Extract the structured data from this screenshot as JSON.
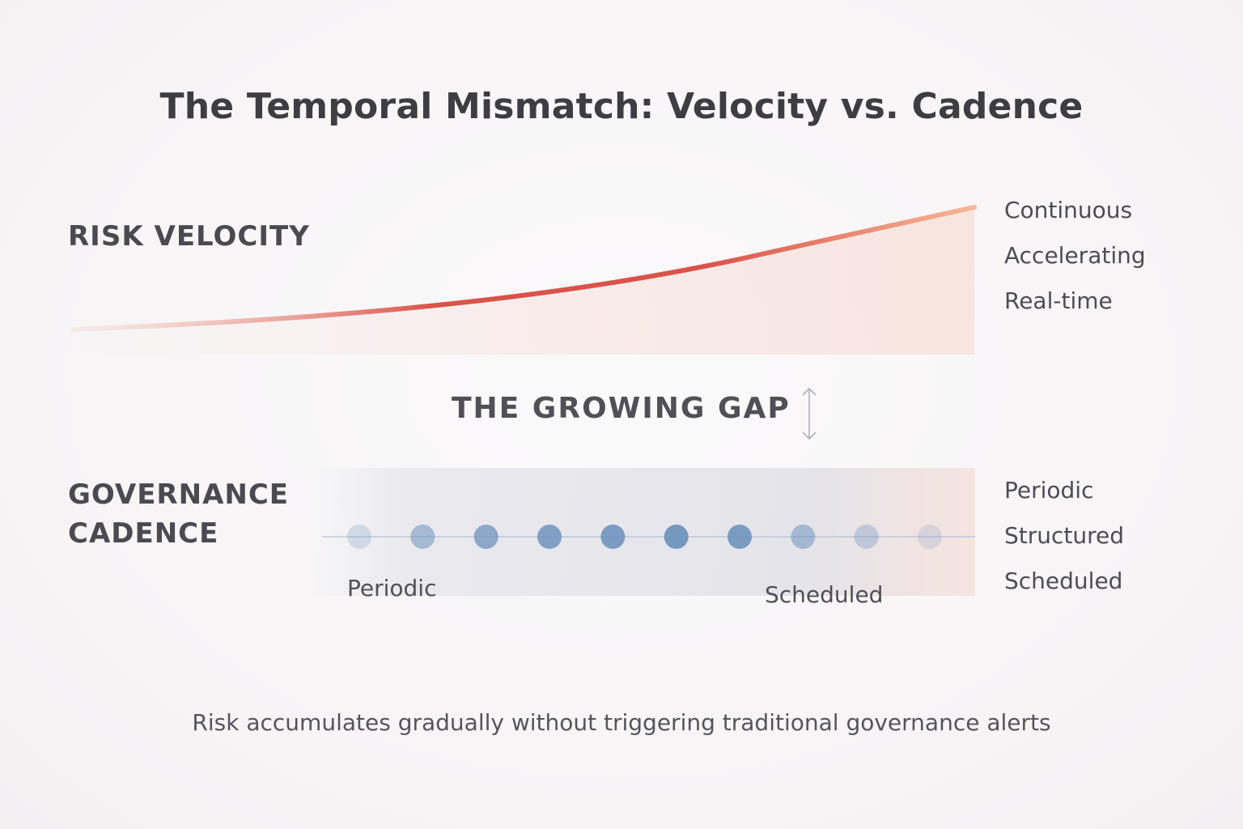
{
  "title": "The Temporal Mismatch: Velocity vs. Cadence",
  "velocity": {
    "label": "RISK VELOCITY",
    "traits": [
      "Continuous",
      "Accelerating",
      "Real-time"
    ],
    "curve_color_start": "#f4c0b0",
    "curve_color_mid": "#d9534a",
    "curve_color_end": "#f7b896"
  },
  "gap": {
    "label": "THE GROWING GAP",
    "arrow_icon": "double-arrow-vertical-icon"
  },
  "cadence": {
    "label_line1": "GOVERNANCE",
    "label_line2": "CADENCE",
    "traits": [
      "Periodic",
      "Structured",
      "Scheduled"
    ],
    "dot_caption_left": "Periodic",
    "dot_caption_right": "Scheduled",
    "dot_count": 10,
    "dot_intensity": [
      0.25,
      0.55,
      0.75,
      0.85,
      0.9,
      0.95,
      0.9,
      0.55,
      0.35,
      0.2
    ],
    "dot_color": "#6f93bd"
  },
  "footer": "Risk accumulates gradually without triggering traditional governance alerts"
}
